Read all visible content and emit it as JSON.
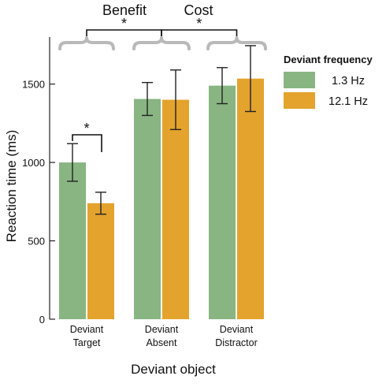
{
  "chart_data": {
    "type": "bar",
    "categories": [
      [
        "Deviant",
        "Target"
      ],
      [
        "Deviant",
        "Absent"
      ],
      [
        "Deviant",
        "Distractor"
      ]
    ],
    "xlabel": "Deviant object",
    "ylabel": "Reaction time (ms)",
    "ylim": [
      0,
      1800
    ],
    "yticks": [
      0,
      500,
      1000,
      1500
    ],
    "legend": {
      "title": "Deviant frequency",
      "placement": "top-right"
    },
    "series": [
      {
        "name": "1.3 Hz",
        "color": "#88b582",
        "values": [
          1000,
          1405,
          1490
        ],
        "error": [
          120,
          105,
          115
        ]
      },
      {
        "name": "12.1 Hz",
        "color": "#e3a32c",
        "values": [
          740,
          1400,
          1535
        ],
        "error": [
          70,
          190,
          210
        ]
      }
    ],
    "annotations": {
      "benefit_label": "Benefit",
      "cost_label": "Cost",
      "significance_marker": "*"
    }
  }
}
